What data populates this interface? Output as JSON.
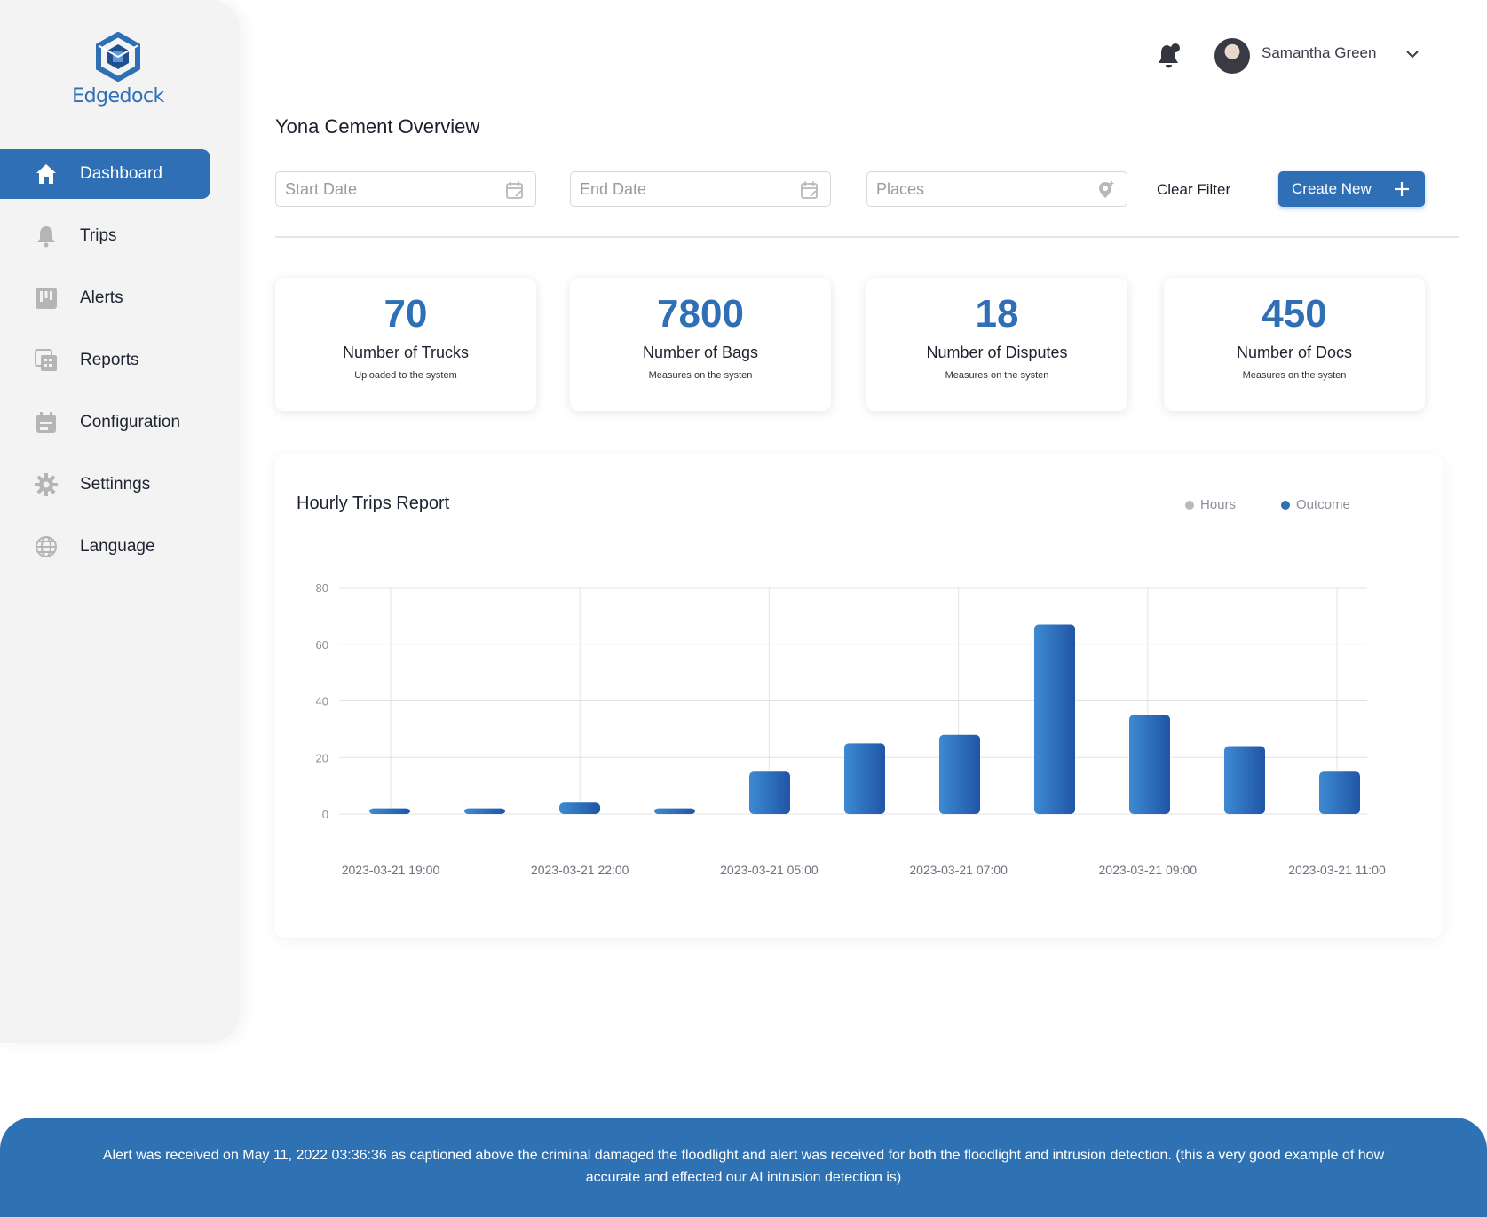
{
  "brand": {
    "name": "Edgedock",
    "accent": "#2f6fb6"
  },
  "sidebar": {
    "items": [
      {
        "label": "Dashboard",
        "icon": "home-icon",
        "active": true
      },
      {
        "label": "Trips",
        "icon": "bell-icon"
      },
      {
        "label": "Alerts",
        "icon": "board-icon"
      },
      {
        "label": "Reports",
        "icon": "reports-icon"
      },
      {
        "label": "Configuration",
        "icon": "calendar-icon"
      },
      {
        "label": "Settinngs",
        "icon": "gear-icon"
      },
      {
        "label": "Language",
        "icon": "globe-icon"
      }
    ]
  },
  "header": {
    "user_name": "Samantha Green"
  },
  "page": {
    "title": "Yona Cement Overview"
  },
  "filters": {
    "start_placeholder": "Start Date",
    "end_placeholder": "End Date",
    "places_placeholder": "Places",
    "clear_label": "Clear Filter",
    "create_label": "Create New"
  },
  "stats": [
    {
      "value": "70",
      "title": "Number of Trucks",
      "subtitle": "Uploaded to the system"
    },
    {
      "value": "7800",
      "title": "Number of Bags",
      "subtitle": "Measures on the systen"
    },
    {
      "value": "18",
      "title": "Number of Disputes",
      "subtitle": "Measures on the systen"
    },
    {
      "value": "450",
      "title": "Number of Docs",
      "subtitle": "Measures on the systen"
    }
  ],
  "chart_data": {
    "type": "bar",
    "title": "Hourly Trips Report",
    "legend": [
      {
        "name": "Hours",
        "color": "#b9b9b9"
      },
      {
        "name": "Outcome",
        "color": "#2f6fb6"
      }
    ],
    "legend_position": "top-right",
    "ylim": [
      0,
      80
    ],
    "yticks": [
      0,
      20,
      40,
      60,
      80
    ],
    "grid": true,
    "x_tick_labels": [
      "2023-03-21 19:00",
      "2023-03-21 22:00",
      "2023-03-21 05:00",
      "2023-03-21 07:00",
      "2023-03-21 09:00",
      "2023-03-21 11:00"
    ],
    "values": [
      2,
      2,
      4,
      2,
      15,
      25,
      28,
      67,
      35,
      24,
      15
    ]
  },
  "footer": {
    "text": "Alert was received on May 11, 2022 03:36:36 as captioned above the criminal damaged the floodlight and alert was received for both the floodlight and intrusion detection. (this a very good example of how accurate and effected our AI intrusion detection is)"
  }
}
